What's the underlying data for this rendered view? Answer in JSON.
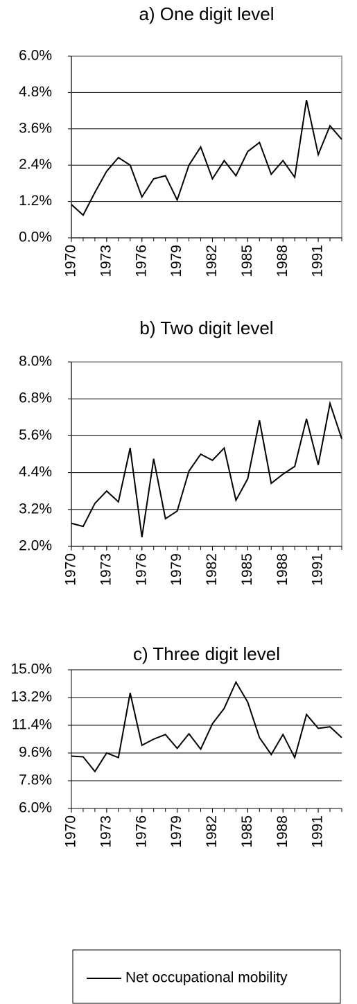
{
  "chart_data": [
    {
      "type": "line",
      "title": "a) One digit level",
      "x": [
        1970,
        1971,
        1972,
        1973,
        1974,
        1975,
        1976,
        1977,
        1978,
        1979,
        1980,
        1981,
        1982,
        1983,
        1984,
        1985,
        1986,
        1987,
        1988,
        1989,
        1990,
        1991,
        1992,
        1993
      ],
      "series": [
        {
          "name": "Net occupational mobility",
          "color": "#000000",
          "values": [
            1.1,
            0.75,
            1.5,
            2.2,
            2.65,
            2.4,
            1.35,
            1.95,
            2.05,
            1.25,
            2.4,
            3.0,
            1.95,
            2.55,
            2.05,
            2.85,
            3.15,
            2.1,
            2.55,
            2.0,
            4.55,
            2.75,
            3.7,
            3.25
          ]
        }
      ],
      "xlim": [
        1970,
        1993
      ],
      "xticks": [
        1970,
        1973,
        1976,
        1979,
        1982,
        1985,
        1988,
        1991
      ],
      "ylim": [
        0,
        6
      ],
      "yticks": [
        {
          "value": 0,
          "label": "0.0%"
        },
        {
          "value": 1.2,
          "label": "1.2%"
        },
        {
          "value": 2.4,
          "label": "2.4%"
        },
        {
          "value": 3.6,
          "label": "3.6%"
        },
        {
          "value": 4.8,
          "label": "4.8%"
        },
        {
          "value": 6,
          "label": "6.0%"
        }
      ],
      "grid": true,
      "frame": true
    },
    {
      "type": "line",
      "title": "b) Two digit level",
      "x": [
        1970,
        1971,
        1972,
        1973,
        1974,
        1975,
        1976,
        1977,
        1978,
        1979,
        1980,
        1981,
        1982,
        1983,
        1984,
        1985,
        1986,
        1987,
        1988,
        1989,
        1990,
        1991,
        1992,
        1993
      ],
      "series": [
        {
          "name": "Net occupational mobility",
          "color": "#000000",
          "values": [
            2.75,
            2.65,
            3.4,
            3.8,
            3.45,
            5.2,
            2.3,
            4.85,
            2.9,
            3.15,
            4.45,
            5.0,
            4.8,
            5.2,
            3.5,
            4.2,
            6.1,
            4.05,
            4.35,
            4.6,
            6.15,
            4.65,
            6.65,
            5.5
          ]
        }
      ],
      "xlim": [
        1970,
        1993
      ],
      "xticks": [
        1970,
        1973,
        1976,
        1979,
        1982,
        1985,
        1988,
        1991
      ],
      "ylim": [
        2,
        8
      ],
      "yticks": [
        {
          "value": 2,
          "label": "2.0%"
        },
        {
          "value": 3.2,
          "label": "3.2%"
        },
        {
          "value": 4.4,
          "label": "4.4%"
        },
        {
          "value": 5.6,
          "label": "5.6%"
        },
        {
          "value": 6.8,
          "label": "6.8%"
        },
        {
          "value": 8,
          "label": "8.0%"
        }
      ],
      "grid": true,
      "frame": true
    },
    {
      "type": "line",
      "title": "c) Three digit level",
      "x": [
        1970,
        1971,
        1972,
        1973,
        1974,
        1975,
        1976,
        1977,
        1978,
        1979,
        1980,
        1981,
        1982,
        1983,
        1984,
        1985,
        1986,
        1987,
        1988,
        1989,
        1990,
        1991,
        1992,
        1993
      ],
      "series": [
        {
          "name": "Net occupational mobility",
          "color": "#000000",
          "values": [
            9.4,
            9.35,
            8.4,
            9.6,
            9.3,
            13.5,
            10.1,
            10.5,
            10.8,
            9.9,
            10.85,
            9.85,
            11.5,
            12.5,
            14.2,
            12.9,
            10.6,
            9.5,
            10.8,
            9.3,
            12.1,
            11.2,
            11.3,
            10.6
          ]
        }
      ],
      "xlim": [
        1970,
        1993
      ],
      "xticks": [
        1970,
        1973,
        1976,
        1979,
        1982,
        1985,
        1988,
        1991
      ],
      "ylim": [
        6,
        15
      ],
      "yticks": [
        {
          "value": 6,
          "label": "6.0%"
        },
        {
          "value": 7.8,
          "label": "7.8%"
        },
        {
          "value": 9.6,
          "label": "9.6%"
        },
        {
          "value": 11.4,
          "label": "11.4%"
        },
        {
          "value": 13.2,
          "label": "13.2%"
        },
        {
          "value": 15,
          "label": "15.0%"
        }
      ],
      "grid": true,
      "frame": false
    }
  ]
}
